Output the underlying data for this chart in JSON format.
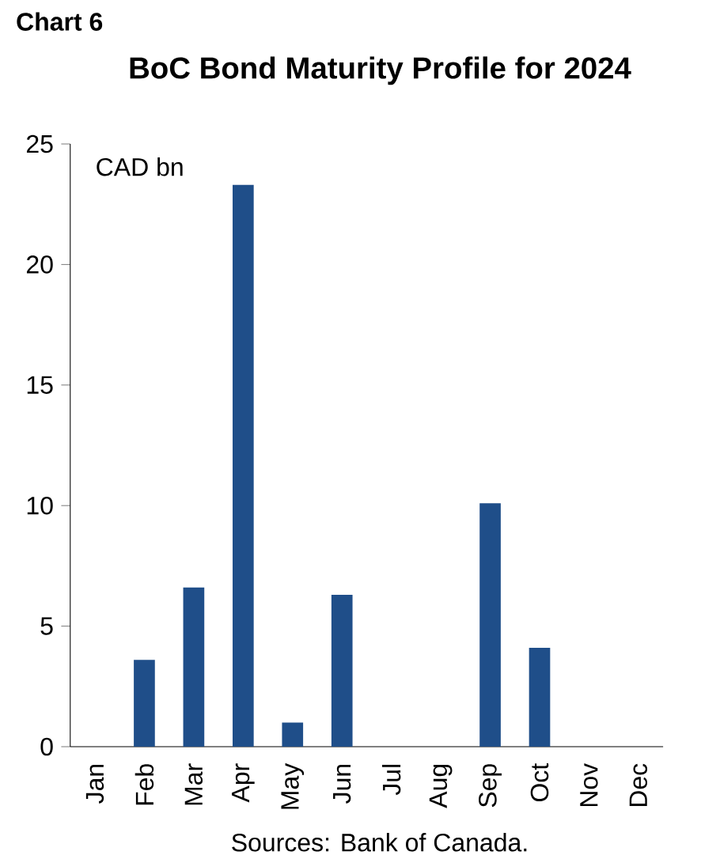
{
  "chart_data": {
    "type": "bar",
    "title": "BoC Bond Maturity Profile for 2024",
    "ylabel": "CAD bn",
    "annotations": [
      "Chart 6",
      "Sources: Bank of Canada."
    ],
    "categories": [
      "Jan",
      "Feb",
      "Mar",
      "Apr",
      "May",
      "Jun",
      "Jul",
      "Aug",
      "Sep",
      "Oct",
      "Nov",
      "Dec"
    ],
    "values": [
      0,
      3.6,
      6.6,
      23.3,
      1.0,
      6.3,
      0,
      0,
      10.1,
      4.1,
      0,
      0
    ],
    "color": "#1f4e89",
    "ylim": [
      0,
      25
    ],
    "yticks": [
      0,
      5,
      10,
      15,
      20,
      25
    ],
    "grid": false
  }
}
